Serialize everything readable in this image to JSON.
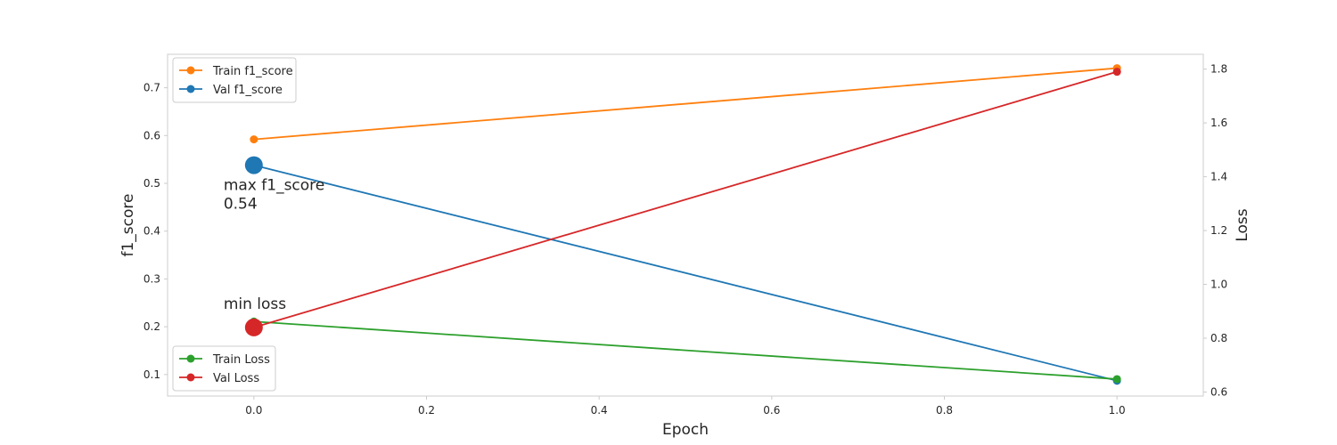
{
  "chart_data": {
    "type": "line",
    "xlabel": "Epoch",
    "ylabel_left": "f1_score",
    "ylabel_right": "Loss",
    "xlim": [
      -0.1,
      1.1
    ],
    "ylim_left": [
      0.055,
      0.77
    ],
    "ylim_right": [
      0.585,
      1.855
    ],
    "x_ticks": [
      0.0,
      0.2,
      0.4,
      0.6,
      0.8,
      1.0
    ],
    "y_ticks_left": [
      0.1,
      0.2,
      0.3,
      0.4,
      0.5,
      0.6,
      0.7
    ],
    "y_ticks_right": [
      0.6,
      0.8,
      1.0,
      1.2,
      1.4,
      1.6,
      1.8
    ],
    "grid": false,
    "series": [
      {
        "name": "Train f1_score",
        "axis": "left",
        "color": "#ff7f0e",
        "x": [
          0,
          1
        ],
        "y": [
          0.592,
          0.741
        ]
      },
      {
        "name": "Val f1_score",
        "axis": "left",
        "color": "#1f77b4",
        "x": [
          0,
          1
        ],
        "y": [
          0.538,
          0.087
        ]
      },
      {
        "name": "Train Loss",
        "axis": "right",
        "color": "#2ca02c",
        "x": [
          0,
          1
        ],
        "y": [
          0.862,
          0.648
        ]
      },
      {
        "name": "Val Loss",
        "axis": "right",
        "color": "#d62728",
        "x": [
          0,
          1
        ],
        "y": [
          0.84,
          1.79
        ]
      }
    ],
    "legends": [
      {
        "placement": "upper-left",
        "entries": [
          "Train f1_score",
          "Val f1_score"
        ]
      },
      {
        "placement": "lower-left",
        "entries": [
          "Train Loss",
          "Val Loss"
        ]
      }
    ],
    "annotations": [
      {
        "axis": "left",
        "series": "Val f1_score",
        "x": 0,
        "y": 0.538,
        "lines": [
          "max f1_score",
          "0.54"
        ]
      },
      {
        "axis": "right",
        "series": "Val Loss",
        "x": 0,
        "y": 0.84,
        "lines": [
          "min loss"
        ]
      }
    ]
  }
}
